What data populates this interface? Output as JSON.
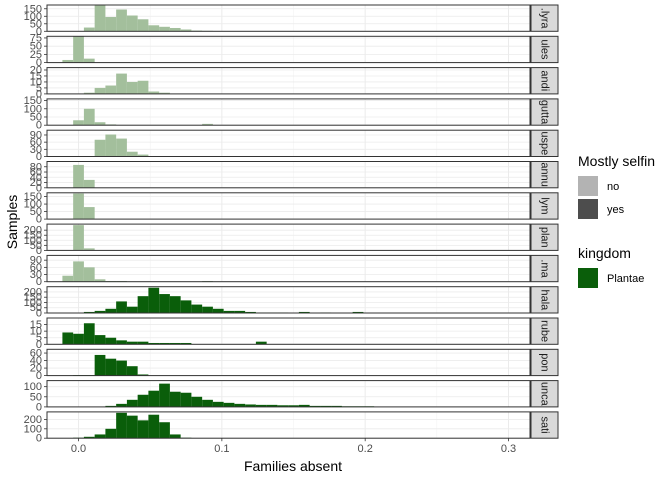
{
  "chart_data": {
    "type": "bar",
    "subtype": "faceted-histogram",
    "xlabel": "Families absent",
    "ylabel": "Samples",
    "xlim": [
      -0.022,
      0.315
    ],
    "x_ticks": [
      0.0,
      0.1,
      0.2,
      0.3
    ],
    "x_tick_labels": [
      "0.0",
      "0.1",
      "0.2",
      "0.3"
    ],
    "bin_width": 0.0075,
    "grid": true,
    "legend_position": "right",
    "legends": [
      {
        "title": "Mostly selfin",
        "entries": [
          {
            "label": "no",
            "color": "#b3b3b3"
          },
          {
            "label": "yes",
            "color": "#4d4d4d"
          }
        ]
      },
      {
        "title": "kingdom",
        "entries": [
          {
            "label": "Plantae",
            "color": "#0a5e0a"
          }
        ]
      }
    ],
    "colors": {
      "light_fill": "#a3bf9c",
      "dark_fill": "#0a5e0a",
      "panel_border": "#333333",
      "strip_bg": "#d9d9d9"
    },
    "facets": [
      {
        "strip": ".lyra",
        "shade": "light",
        "ylim": [
          0,
          175
        ],
        "y_ticks": [
          0,
          50,
          100,
          150
        ],
        "bins": [
          {
            "x": 0.015,
            "y": 175
          },
          {
            "x": 0.0225,
            "y": 95
          },
          {
            "x": 0.03,
            "y": 145
          },
          {
            "x": 0.0375,
            "y": 105
          },
          {
            "x": 0.045,
            "y": 80
          },
          {
            "x": 0.0525,
            "y": 40
          },
          {
            "x": 0.06,
            "y": 30
          },
          {
            "x": 0.0075,
            "y": 25
          },
          {
            "x": 0.0675,
            "y": 22
          },
          {
            "x": 0.075,
            "y": 12
          },
          {
            "x": 0.0825,
            "y": 5
          },
          {
            "x": 0.09,
            "y": 3
          }
        ]
      },
      {
        "strip": "ules",
        "shade": "light",
        "ylim": [
          0,
          80
        ],
        "y_ticks": [
          0,
          25,
          50,
          75
        ],
        "bins": [
          {
            "x": -0.0075,
            "y": 8
          },
          {
            "x": 0.0,
            "y": 82
          },
          {
            "x": 0.0075,
            "y": 12
          }
        ]
      },
      {
        "strip": "andi",
        "shade": "light",
        "ylim": [
          0,
          22
        ],
        "y_ticks": [
          0,
          5,
          10,
          15,
          20
        ],
        "bins": [
          {
            "x": 0.0075,
            "y": 1
          },
          {
            "x": 0.015,
            "y": 5
          },
          {
            "x": 0.0225,
            "y": 7
          },
          {
            "x": 0.03,
            "y": 17
          },
          {
            "x": 0.0375,
            "y": 10
          },
          {
            "x": 0.045,
            "y": 11
          },
          {
            "x": 0.0525,
            "y": 2
          },
          {
            "x": 0.06,
            "y": 1
          }
        ]
      },
      {
        "strip": "gutta",
        "shade": "light",
        "ylim": [
          0,
          160
        ],
        "y_ticks": [
          0,
          50,
          100,
          150
        ],
        "bins": [
          {
            "x": 0.0,
            "y": 30
          },
          {
            "x": 0.0075,
            "y": 100
          },
          {
            "x": 0.015,
            "y": 18
          },
          {
            "x": 0.0225,
            "y": 5
          },
          {
            "x": 0.09,
            "y": 8
          }
        ]
      },
      {
        "strip": "uspe",
        "shade": "light",
        "ylim": [
          0,
          110
        ],
        "y_ticks": [
          0,
          30,
          60,
          90
        ],
        "bins": [
          {
            "x": 0.015,
            "y": 70
          },
          {
            "x": 0.0225,
            "y": 92
          },
          {
            "x": 0.03,
            "y": 75
          },
          {
            "x": 0.0375,
            "y": 20
          },
          {
            "x": 0.045,
            "y": 8
          }
        ]
      },
      {
        "strip": "annu",
        "shade": "light",
        "ylim": [
          0,
          100
        ],
        "y_ticks": [
          0,
          20,
          40,
          60,
          80
        ],
        "bins": [
          {
            "x": -0.0075,
            "y": 1
          },
          {
            "x": 0.0,
            "y": 87
          },
          {
            "x": 0.0075,
            "y": 30
          }
        ]
      },
      {
        "strip": "lym",
        "shade": "light",
        "ylim": [
          0,
          175
        ],
        "y_ticks": [
          0,
          50,
          100,
          150
        ],
        "bins": [
          {
            "x": -0.0075,
            "y": 2
          },
          {
            "x": 0.0,
            "y": 170
          },
          {
            "x": 0.0075,
            "y": 80
          }
        ]
      },
      {
        "strip": "plan",
        "shade": "light",
        "ylim": [
          0,
          260
        ],
        "y_ticks": [
          0,
          50,
          100,
          150,
          200
        ],
        "bins": [
          {
            "x": -0.0075,
            "y": 3
          },
          {
            "x": 0.0,
            "y": 250
          },
          {
            "x": 0.0075,
            "y": 20
          }
        ]
      },
      {
        "strip": ".ma",
        "shade": "light",
        "ylim": [
          0,
          110
        ],
        "y_ticks": [
          0,
          30,
          60,
          90
        ],
        "bins": [
          {
            "x": -0.0075,
            "y": 25
          },
          {
            "x": 0.0,
            "y": 85
          },
          {
            "x": 0.0075,
            "y": 60
          },
          {
            "x": 0.015,
            "y": 10
          },
          {
            "x": 0.0225,
            "y": 3
          },
          {
            "x": 0.03,
            "y": 3
          },
          {
            "x": 0.09,
            "y": 3
          }
        ]
      },
      {
        "strip": "hala",
        "shade": "dark",
        "ylim": [
          0,
          250
        ],
        "y_ticks": [
          0,
          50,
          100,
          150,
          200
        ],
        "bins": [
          {
            "x": 0.0075,
            "y": 10
          },
          {
            "x": 0.015,
            "y": 20
          },
          {
            "x": 0.0225,
            "y": 40
          },
          {
            "x": 0.03,
            "y": 110
          },
          {
            "x": 0.0375,
            "y": 60
          },
          {
            "x": 0.045,
            "y": 160
          },
          {
            "x": 0.0525,
            "y": 240
          },
          {
            "x": 0.06,
            "y": 180
          },
          {
            "x": 0.0675,
            "y": 160
          },
          {
            "x": 0.075,
            "y": 120
          },
          {
            "x": 0.0825,
            "y": 80
          },
          {
            "x": 0.09,
            "y": 60
          },
          {
            "x": 0.0975,
            "y": 40
          },
          {
            "x": 0.105,
            "y": 20
          },
          {
            "x": 0.1125,
            "y": 20
          },
          {
            "x": 0.12,
            "y": 10
          },
          {
            "x": 0.1275,
            "y": 5
          },
          {
            "x": 0.135,
            "y": 5
          },
          {
            "x": 0.1425,
            "y": 5
          },
          {
            "x": 0.15,
            "y": 3
          },
          {
            "x": 0.1575,
            "y": 10
          },
          {
            "x": 0.165,
            "y": 3
          },
          {
            "x": 0.1725,
            "y": 5
          },
          {
            "x": 0.18,
            "y": 3
          },
          {
            "x": 0.1875,
            "y": 2
          },
          {
            "x": 0.195,
            "y": 10
          },
          {
            "x": 0.2025,
            "y": 3
          },
          {
            "x": 0.21,
            "y": 3
          },
          {
            "x": 0.2175,
            "y": 2
          },
          {
            "x": 0.225,
            "y": 2
          },
          {
            "x": 0.24,
            "y": 2
          },
          {
            "x": 0.2625,
            "y": 3
          }
        ]
      },
      {
        "strip": "rube",
        "shade": "dark",
        "ylim": [
          0,
          20
        ],
        "y_ticks": [
          0,
          5,
          10,
          15
        ],
        "bins": [
          {
            "x": -0.0075,
            "y": 9
          },
          {
            "x": 0.0,
            "y": 8
          },
          {
            "x": 0.0075,
            "y": 16
          },
          {
            "x": 0.015,
            "y": 7
          },
          {
            "x": 0.0225,
            "y": 5
          },
          {
            "x": 0.03,
            "y": 3
          },
          {
            "x": 0.0375,
            "y": 2
          },
          {
            "x": 0.045,
            "y": 2
          },
          {
            "x": 0.0525,
            "y": 1
          },
          {
            "x": 0.06,
            "y": 1
          },
          {
            "x": 0.0675,
            "y": 1
          },
          {
            "x": 0.075,
            "y": 1
          },
          {
            "x": 0.1275,
            "y": 2
          }
        ]
      },
      {
        "strip": "pon",
        "shade": "dark",
        "ylim": [
          0,
          70
        ],
        "y_ticks": [
          0,
          20,
          40,
          60
        ],
        "bins": [
          {
            "x": 0.0,
            "y": 1
          },
          {
            "x": 0.0075,
            "y": 1
          },
          {
            "x": 0.015,
            "y": 55
          },
          {
            "x": 0.0225,
            "y": 45
          },
          {
            "x": 0.03,
            "y": 40
          },
          {
            "x": 0.0375,
            "y": 25
          },
          {
            "x": 0.045,
            "y": 3
          }
        ]
      },
      {
        "strip": "unca",
        "shade": "dark",
        "ylim": [
          0,
          130
        ],
        "y_ticks": [
          0,
          50,
          100
        ],
        "bins": [
          {
            "x": 0.0225,
            "y": 5
          },
          {
            "x": 0.03,
            "y": 15
          },
          {
            "x": 0.0375,
            "y": 35
          },
          {
            "x": 0.045,
            "y": 60
          },
          {
            "x": 0.0525,
            "y": 80
          },
          {
            "x": 0.06,
            "y": 115
          },
          {
            "x": 0.0675,
            "y": 75
          },
          {
            "x": 0.075,
            "y": 70
          },
          {
            "x": 0.0825,
            "y": 50
          },
          {
            "x": 0.09,
            "y": 35
          },
          {
            "x": 0.0975,
            "y": 25
          },
          {
            "x": 0.105,
            "y": 20
          },
          {
            "x": 0.1125,
            "y": 15
          },
          {
            "x": 0.12,
            "y": 12
          },
          {
            "x": 0.1275,
            "y": 10
          },
          {
            "x": 0.135,
            "y": 10
          },
          {
            "x": 0.1425,
            "y": 8
          },
          {
            "x": 0.15,
            "y": 8
          },
          {
            "x": 0.1575,
            "y": 10
          },
          {
            "x": 0.165,
            "y": 5
          },
          {
            "x": 0.1725,
            "y": 5
          },
          {
            "x": 0.18,
            "y": 5
          },
          {
            "x": 0.1875,
            "y": 3
          },
          {
            "x": 0.195,
            "y": 3
          },
          {
            "x": 0.2025,
            "y": 3
          },
          {
            "x": 0.21,
            "y": 2
          },
          {
            "x": 0.2175,
            "y": 2
          }
        ]
      },
      {
        "strip": "sati",
        "shade": "dark",
        "ylim": [
          0,
          280
        ],
        "y_ticks": [
          0,
          100,
          200
        ],
        "bins": [
          {
            "x": 0.0,
            "y": 5
          },
          {
            "x": 0.0075,
            "y": 15
          },
          {
            "x": 0.015,
            "y": 40
          },
          {
            "x": 0.0225,
            "y": 100
          },
          {
            "x": 0.03,
            "y": 270
          },
          {
            "x": 0.0375,
            "y": 240
          },
          {
            "x": 0.045,
            "y": 190
          },
          {
            "x": 0.0525,
            "y": 250
          },
          {
            "x": 0.06,
            "y": 170
          },
          {
            "x": 0.0675,
            "y": 40
          },
          {
            "x": 0.075,
            "y": 5
          }
        ]
      }
    ]
  }
}
